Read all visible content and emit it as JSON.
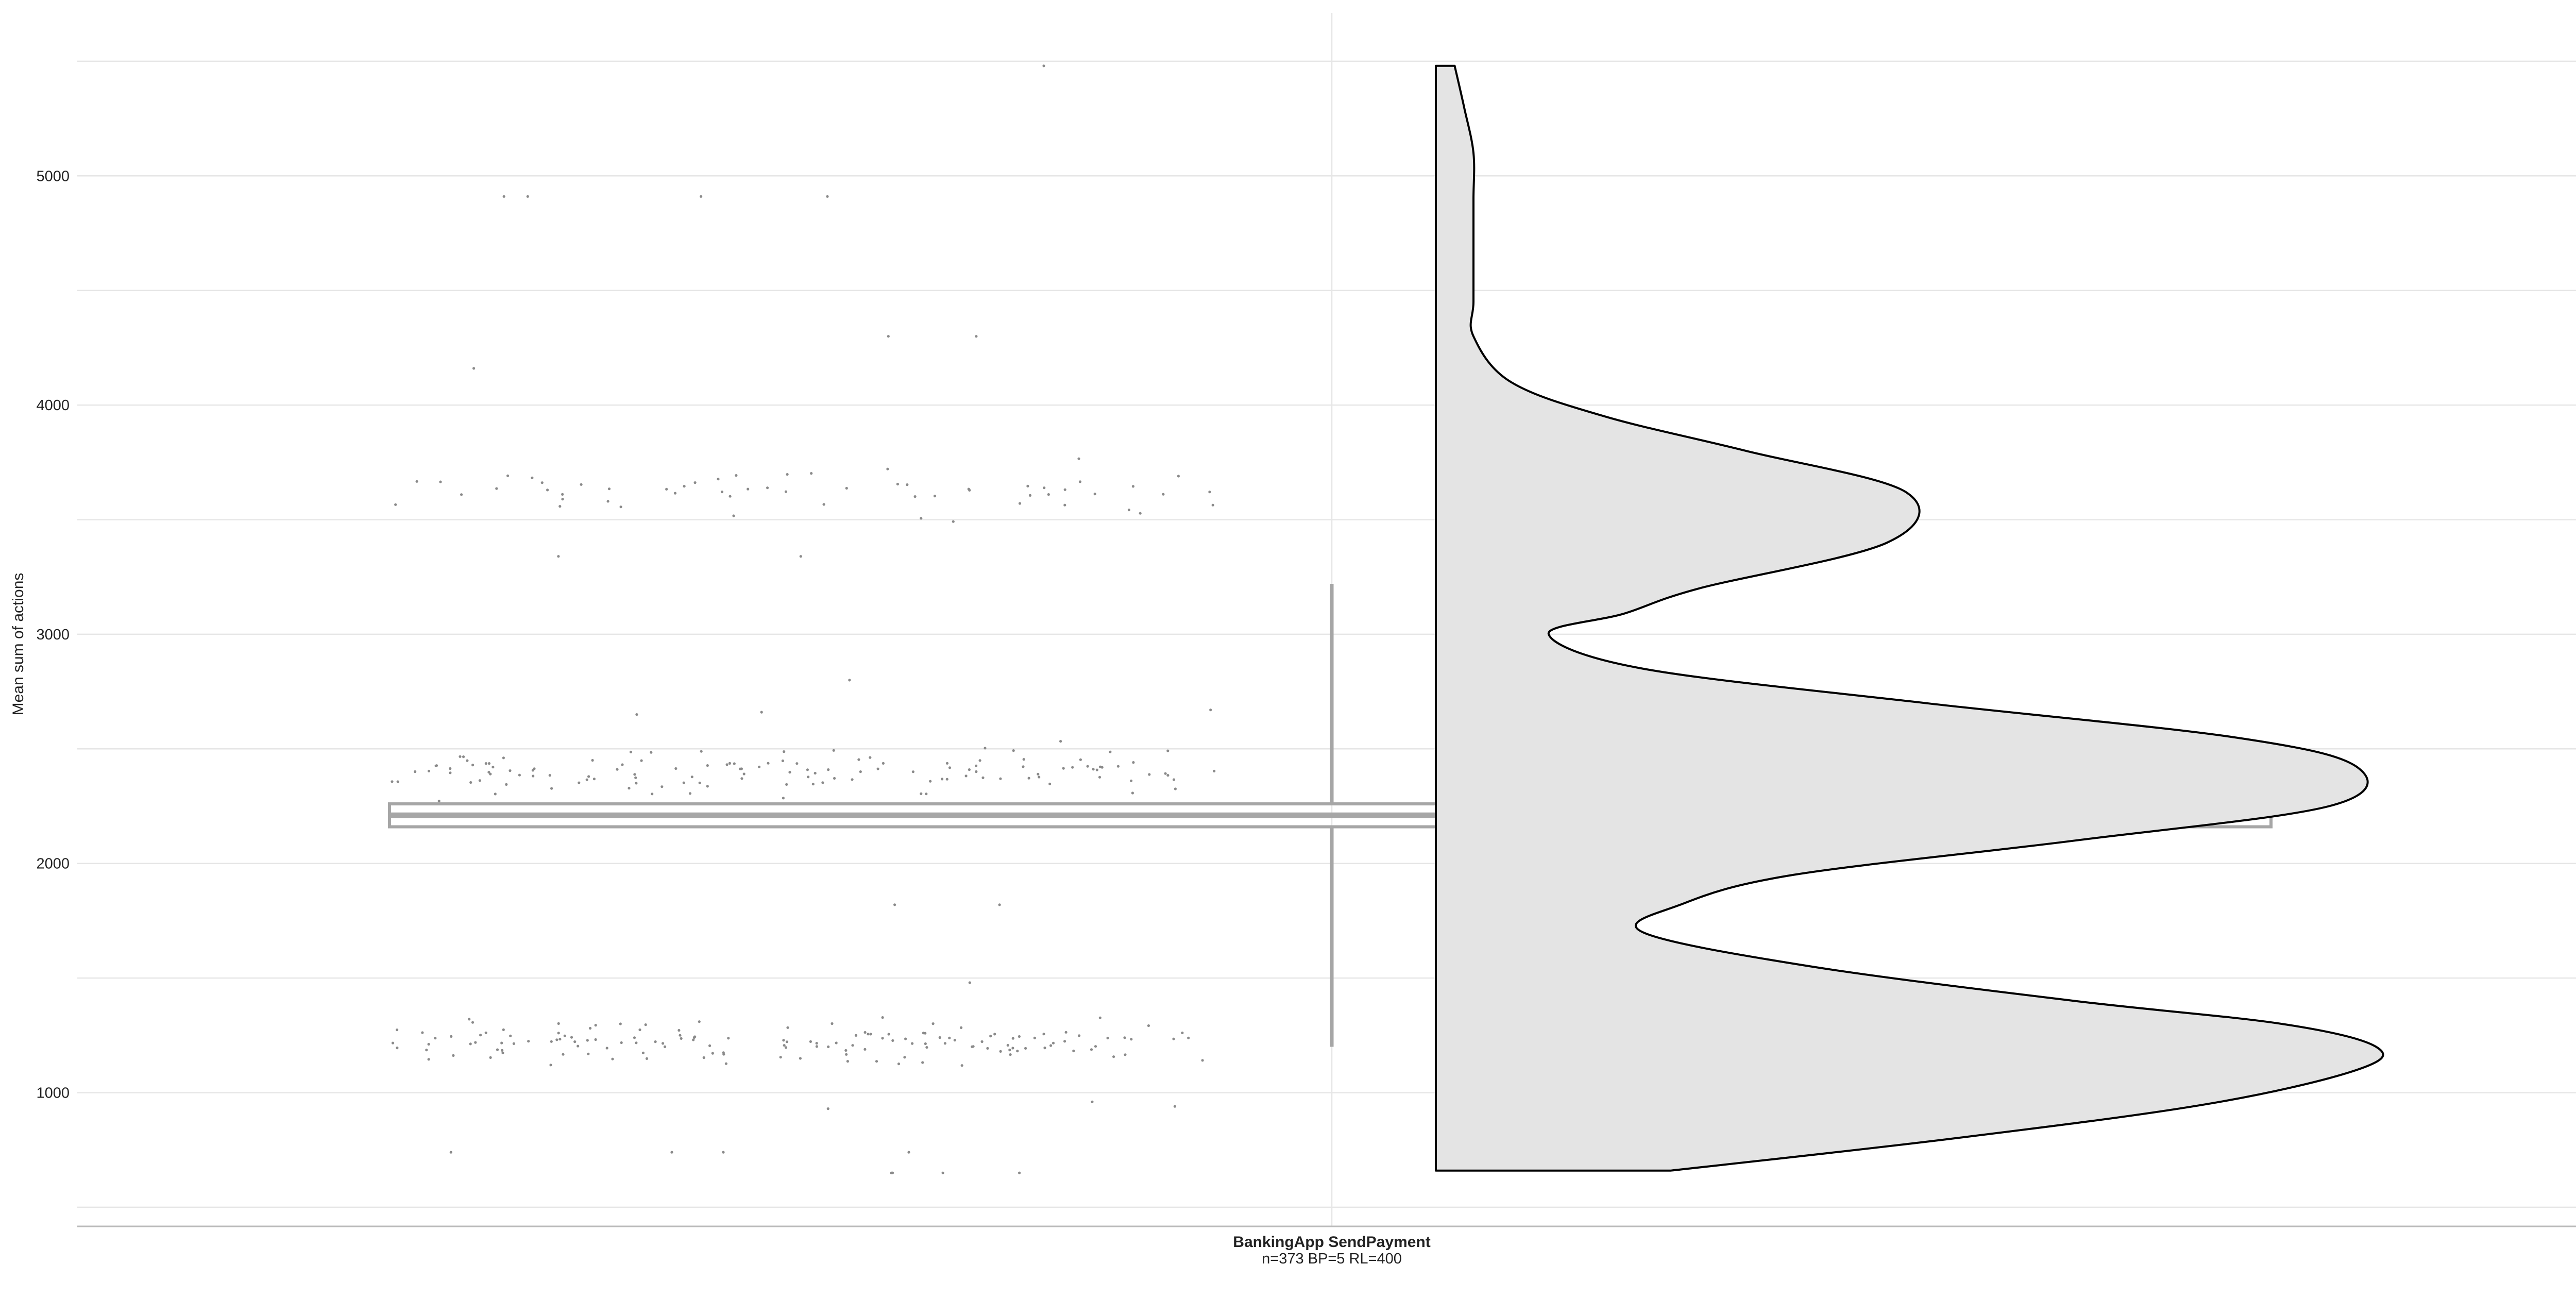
{
  "chart_data": {
    "type": "raincloud",
    "title": "",
    "xlabel": "",
    "ylabel": "Mean sum of actions",
    "ylim": [
      500,
      5600
    ],
    "yticks": [
      1000,
      2000,
      3000,
      4000,
      5000
    ],
    "grid": true,
    "categories": [
      "BankingApp SendPayment"
    ],
    "category_sublabels": [
      "n=373 BP=5 RL=400"
    ],
    "colors": {
      "violin_fill": "#e4e4e4",
      "violin_stroke": "#000000",
      "box_stroke": "#a6a6a6",
      "point": "#8a8a8a",
      "grid": "#e6e6e6",
      "axis": "#bbbbbb"
    },
    "boxplot": {
      "min": 1200,
      "q1": 2160,
      "median": 2210,
      "q3": 2260,
      "max": 3220
    },
    "density": {
      "y": [
        660,
        800,
        950,
        1100,
        1200,
        1300,
        1400,
        1550,
        1700,
        1820,
        1950,
        2100,
        2250,
        2420,
        2550,
        2700,
        2850,
        3000,
        3090,
        3200,
        3400,
        3620,
        3800,
        3950,
        4100,
        4300,
        4450,
        4700,
        4900,
        5100,
        5300,
        5480
      ],
      "width": [
        0.25,
        0.55,
        0.82,
        0.98,
        1.0,
        0.9,
        0.68,
        0.4,
        0.22,
        0.26,
        0.38,
        0.68,
        0.95,
        0.98,
        0.85,
        0.52,
        0.22,
        0.12,
        0.2,
        0.28,
        0.48,
        0.5,
        0.33,
        0.18,
        0.08,
        0.04,
        0.04,
        0.04,
        0.04,
        0.04,
        0.03,
        0.02
      ]
    },
    "points": {
      "seed": 7,
      "clusters": [
        {
          "center": 1220,
          "spread": 45,
          "count": 148
        },
        {
          "center": 2410,
          "spread": 55,
          "count": 128
        },
        {
          "center": 3620,
          "spread": 50,
          "count": 58
        }
      ],
      "values": [
        650,
        650,
        650,
        650,
        740,
        740,
        740,
        740,
        930,
        940,
        960,
        1480,
        1820,
        1820,
        2650,
        2660,
        2670,
        2800,
        3340,
        3340,
        4160,
        4300,
        4300,
        4910,
        4910,
        4910,
        4910,
        5480
      ]
    }
  }
}
